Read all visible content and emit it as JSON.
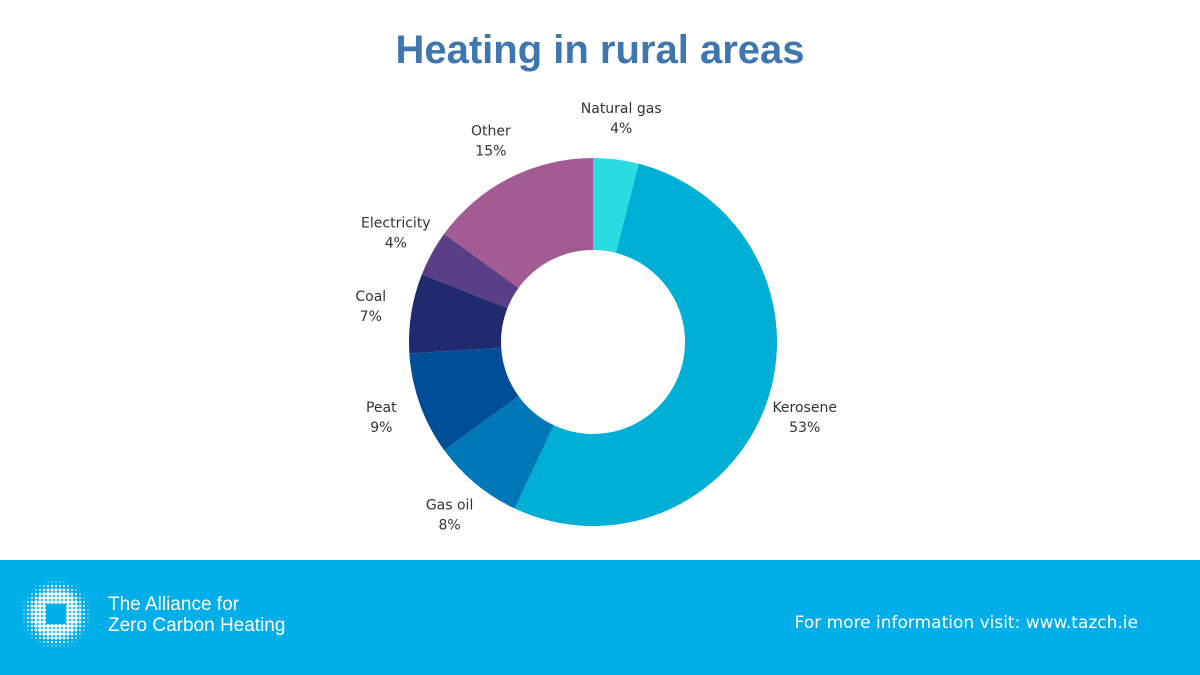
{
  "chart_data": {
    "type": "pie",
    "title": "Heating in rural areas",
    "slices": [
      {
        "label": "Natural gas",
        "value": 4,
        "display": "4%",
        "color": "#2bdbe2"
      },
      {
        "label": "Kerosene",
        "value": 53,
        "display": "53%",
        "color": "#00afd6"
      },
      {
        "label": "Gas oil",
        "value": 8,
        "display": "8%",
        "color": "#0077b6"
      },
      {
        "label": "Peat",
        "value": 9,
        "display": "9%",
        "color": "#004e97"
      },
      {
        "label": "Coal",
        "value": 7,
        "display": "7%",
        "color": "#212a6e"
      },
      {
        "label": "Electricity",
        "value": 4,
        "display": "4%",
        "color": "#5b3f86"
      },
      {
        "label": "Other",
        "value": 15,
        "display": "15%",
        "color": "#a25b93"
      }
    ],
    "legend": "none"
  },
  "footer": {
    "org_line1": "The Alliance for",
    "org_line2": "Zero Carbon Heating",
    "info": "For more information visit: www.tazch.ie",
    "background": "#00aeea"
  }
}
